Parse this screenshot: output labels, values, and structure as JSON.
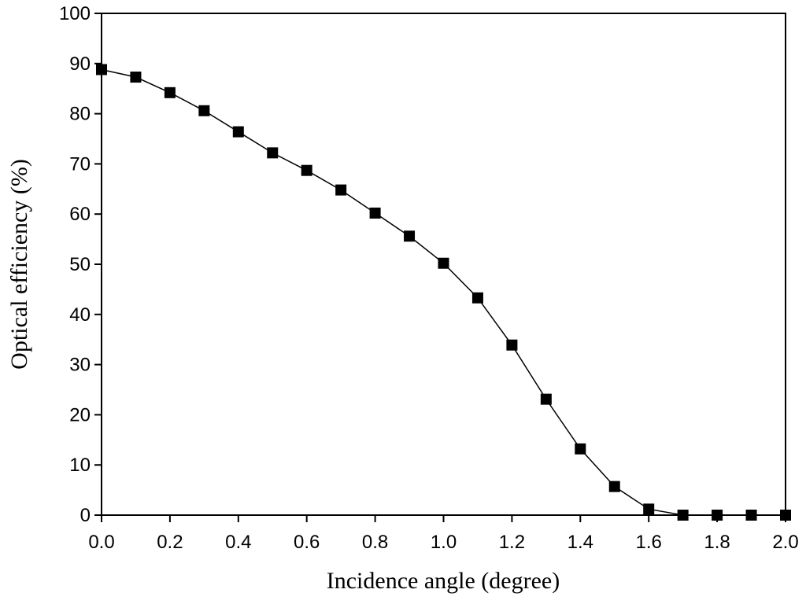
{
  "chart_data": {
    "type": "line",
    "x_label": "Incidence angle (degree)",
    "y_label": "Optical efficiency (%)",
    "x": [
      0.0,
      0.1,
      0.2,
      0.3,
      0.4,
      0.5,
      0.6,
      0.7,
      0.8,
      0.9,
      1.0,
      1.1,
      1.2,
      1.3,
      1.4,
      1.5,
      1.6,
      1.7,
      1.8,
      1.9,
      2.0
    ],
    "series": [
      {
        "color": "#000000",
        "values": [
          88.8,
          87.3,
          84.2,
          80.6,
          76.4,
          72.2,
          68.7,
          64.8,
          60.2,
          55.6,
          50.2,
          43.3,
          33.9,
          23.1,
          13.2,
          5.7,
          1.2,
          0,
          0,
          0,
          0
        ]
      }
    ],
    "xlim": [
      0,
      2
    ],
    "xticks": [
      {
        "value": 0,
        "label": "0.0"
      },
      0.2,
      0.4,
      0.6,
      0.8,
      {
        "value": 1,
        "label": "1.0"
      },
      1.2,
      1.4,
      1.6,
      1.8,
      {
        "value": 2,
        "label": "2.0"
      }
    ],
    "ylim": [
      0,
      100
    ],
    "yticks": [
      0,
      10,
      20,
      30,
      40,
      50,
      60,
      70,
      80,
      90,
      100
    ],
    "grid": false
  }
}
